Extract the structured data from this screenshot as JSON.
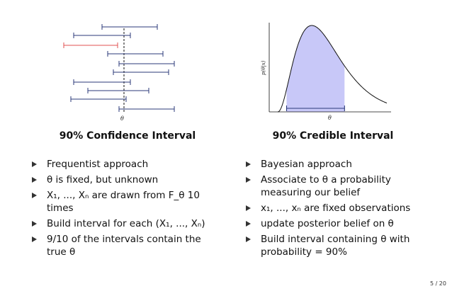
{
  "left": {
    "title": "90% Confidence Interval",
    "axis_label": "θ",
    "bullets": [
      "Frequentist approach",
      "θ is fixed, but unknown",
      "X₁, ..., Xₙ are drawn from F_θ 10 times",
      "Build interval for each (X₁, ..., Xₙ)",
      "9/10 of the intervals contain the true θ"
    ],
    "colors": {
      "interval": "#2b3a7a",
      "miss": "#e05050",
      "true_line": "#111111"
    }
  },
  "right": {
    "title": "90% Credible Interval",
    "y_label": "p(θ|x)",
    "x_label": "θ",
    "bullets": [
      "Bayesian approach",
      "Associate to θ a probability measuring our belief",
      "x₁, ..., xₙ are fixed observations",
      "update posterior belief on θ",
      "Build interval containing θ with probability = 90%"
    ],
    "colors": {
      "fill": "#c8c8f8",
      "interval": "#2b3a7a",
      "curve": "#111111"
    }
  },
  "page_number": "5 / 20"
}
